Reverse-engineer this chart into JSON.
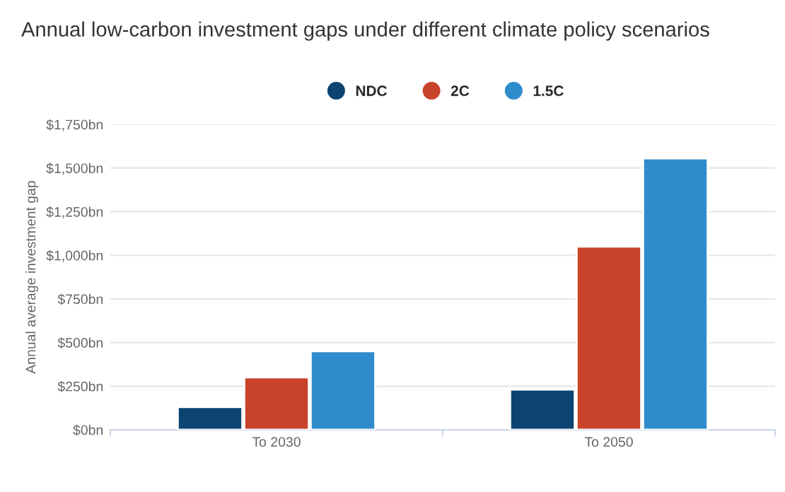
{
  "chart_data": {
    "type": "bar",
    "title": "Annual low-carbon investment gaps under different climate policy scenarios",
    "ylabel": "Annual average investment gap",
    "categories": [
      "To 2030",
      "To 2050"
    ],
    "series": [
      {
        "name": "NDC",
        "color": "#0b4470",
        "values": [
          130,
          230
        ]
      },
      {
        "name": "2C",
        "color": "#c8432a",
        "values": [
          300,
          1050
        ]
      },
      {
        "name": "1.5C",
        "color": "#2f8ccc",
        "values": [
          450,
          1555
        ]
      }
    ],
    "ylim": [
      0,
      1750
    ],
    "yticks": [
      {
        "value": 0,
        "label": "$0bn"
      },
      {
        "value": 250,
        "label": "$250bn"
      },
      {
        "value": 500,
        "label": "$500bn"
      },
      {
        "value": 750,
        "label": "$750bn"
      },
      {
        "value": 1000,
        "label": "$1,000bn"
      },
      {
        "value": 1250,
        "label": "$1,250bn"
      },
      {
        "value": 1500,
        "label": "$1,500bn"
      },
      {
        "value": 1750,
        "label": "$1,750bn"
      }
    ],
    "grid": "y",
    "legend": "top"
  }
}
